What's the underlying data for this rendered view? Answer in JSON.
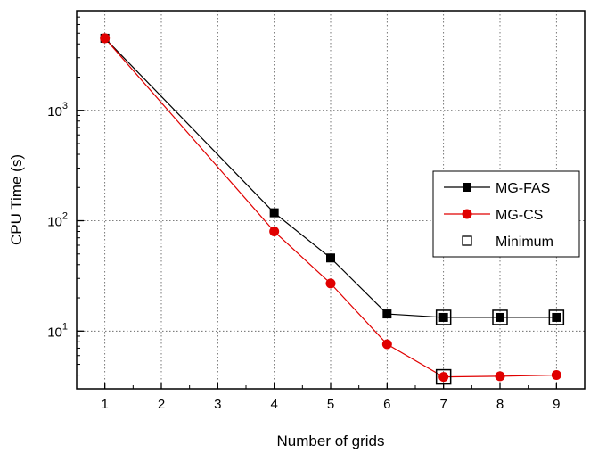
{
  "chart_data": {
    "type": "line",
    "xlabel": "Number of grids",
    "ylabel": "CPU Time (s)",
    "yscale": "log",
    "xlim": [
      0.5,
      9.5
    ],
    "ylim": [
      3.0,
      8000
    ],
    "grid": true,
    "legend_position": "right",
    "x_ticks": [
      1,
      2,
      3,
      4,
      5,
      6,
      7,
      8,
      9
    ],
    "y_ticks": [
      {
        "value": 10,
        "base": "10",
        "exp": "1"
      },
      {
        "value": 100,
        "base": "10",
        "exp": "2"
      },
      {
        "value": 1000,
        "base": "10",
        "exp": "3"
      }
    ],
    "series": [
      {
        "name": "MG-FAS",
        "color": "#000000",
        "marker": "filled-square",
        "x": [
          1,
          4,
          5,
          6,
          7,
          8,
          9
        ],
        "y": [
          4500,
          118,
          46,
          14.3,
          13.3,
          13.3,
          13.3
        ]
      },
      {
        "name": "MG-CS",
        "color": "#e00000",
        "marker": "filled-circle",
        "x": [
          1,
          4,
          5,
          6,
          7,
          8,
          9
        ],
        "y": [
          4500,
          80,
          27,
          7.6,
          3.85,
          3.9,
          4.0
        ]
      },
      {
        "name": "Minimum",
        "color": "#000000",
        "marker": "open-square",
        "x": [
          7,
          8,
          9,
          7
        ],
        "y": [
          13.3,
          13.3,
          13.3,
          3.85
        ]
      }
    ]
  }
}
